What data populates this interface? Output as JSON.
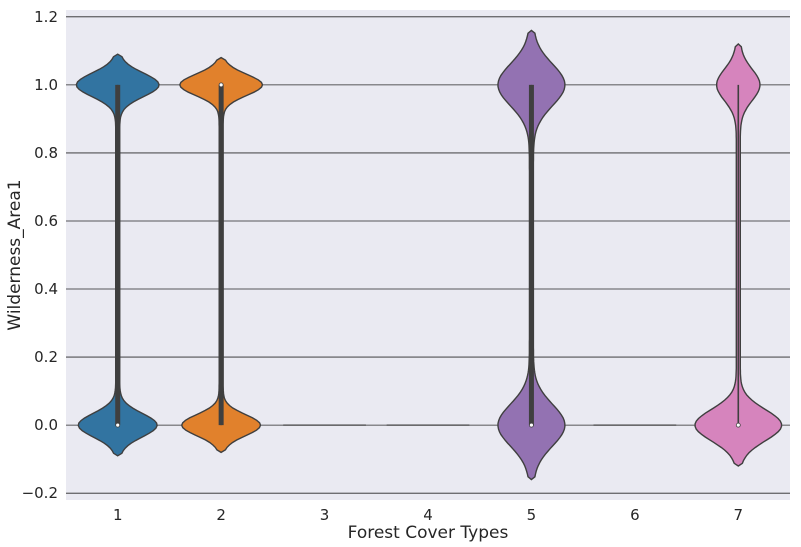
{
  "chart_data": {
    "type": "violin",
    "xlabel": "Forest Cover Types",
    "ylabel": "Wilderness_Area1",
    "categories": [
      "1",
      "2",
      "3",
      "4",
      "5",
      "6",
      "7"
    ],
    "ylim": [
      -0.22,
      1.22
    ],
    "yticks": [
      -0.2,
      0.0,
      0.2,
      0.4,
      0.6,
      0.8,
      1.0,
      1.2
    ],
    "ytick_labels": [
      "−0.2",
      "0.0",
      "0.2",
      "0.4",
      "0.6",
      "0.8",
      "1.0",
      "1.2"
    ],
    "grid": true,
    "background": "#eaeaf2",
    "series": [
      {
        "category": "1",
        "color": "#3274a1",
        "min": 0,
        "max": 1,
        "median": 0,
        "q1": 0,
        "q3": 1,
        "extent": [
          -0.09,
          1.09
        ],
        "bulge": {
          "0": 0.38,
          "1": 0.4
        }
      },
      {
        "category": "2",
        "color": "#e1812c",
        "min": 0,
        "max": 1,
        "median": 1,
        "q1": 0,
        "q3": 1,
        "extent": [
          -0.08,
          1.08
        ],
        "bulge": {
          "0": 0.38,
          "1": 0.4
        }
      },
      {
        "category": "3",
        "color": "#3a923a",
        "min": 0,
        "max": 0,
        "median": 0,
        "q1": 0,
        "q3": 0,
        "extent": [
          0,
          0
        ],
        "bulge": {
          "0": 0,
          "1": 0
        }
      },
      {
        "category": "4",
        "color": "#c03d3e",
        "min": 0,
        "max": 0,
        "median": 0,
        "q1": 0,
        "q3": 0,
        "extent": [
          0,
          0
        ],
        "bulge": {
          "0": 0,
          "1": 0
        }
      },
      {
        "category": "5",
        "color": "#9372b2",
        "min": 0,
        "max": 1,
        "median": 0,
        "q1": 0,
        "q3": 1,
        "extent": [
          -0.16,
          1.16
        ],
        "bulge": {
          "0": 0.32,
          "1": 0.32
        }
      },
      {
        "category": "6",
        "color": "#845b53",
        "min": 0,
        "max": 0,
        "median": 0,
        "q1": 0,
        "q3": 0,
        "extent": [
          0,
          0
        ],
        "bulge": {
          "0": 0,
          "1": 0
        }
      },
      {
        "category": "7",
        "color": "#d684bd",
        "min": 0,
        "max": 1,
        "median": 0,
        "q1": 0,
        "q3": 0,
        "extent": [
          -0.12,
          1.12
        ],
        "bulge": {
          "0": 0.42,
          "1": 0.2
        }
      }
    ]
  }
}
